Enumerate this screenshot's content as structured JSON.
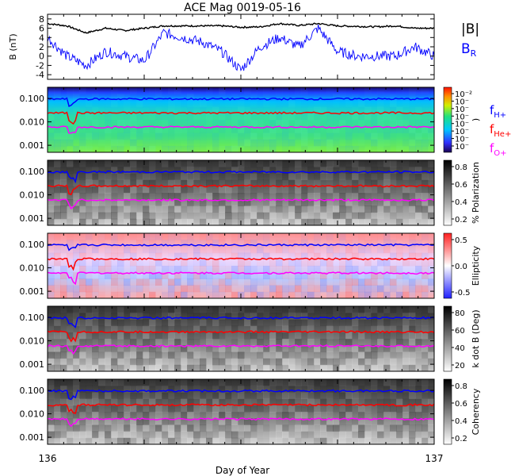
{
  "chart_data": {
    "type": "figure",
    "title": "ACE Mag 0019-05-16",
    "xlabel": "Day of Year",
    "x_ticks": [
      "136",
      "137"
    ],
    "xlim": [
      136,
      137
    ],
    "panels": [
      {
        "type": "line",
        "ylabel": "B (nT)",
        "yticks": [
          "8",
          "6",
          "4",
          "2",
          "0",
          "-2",
          "-4"
        ],
        "ylim": [
          -5,
          9
        ],
        "series": [
          {
            "name": "|B|",
            "color": "#000000",
            "x": [
              136.0,
              136.05,
              136.1,
              136.15,
              136.2,
              136.25,
              136.3,
              136.35,
              136.4,
              136.45,
              136.5,
              136.55,
              136.6,
              136.65,
              136.7,
              136.75,
              136.8,
              136.85,
              136.9,
              136.95,
              137.0
            ],
            "y": [
              7,
              6.5,
              5,
              6,
              5.5,
              6,
              6.5,
              6.5,
              6.5,
              6.5,
              6.2,
              6.3,
              7,
              6.6,
              7,
              6.5,
              6.4,
              6.3,
              6.5,
              6,
              6
            ]
          },
          {
            "name": "B_R",
            "color": "#0000ff",
            "x": [
              136.0,
              136.05,
              136.1,
              136.15,
              136.2,
              136.25,
              136.3,
              136.35,
              136.4,
              136.45,
              136.5,
              136.55,
              136.6,
              136.65,
              136.7,
              136.75,
              136.8,
              136.85,
              136.9,
              136.95,
              137.0
            ],
            "y": [
              4,
              0,
              -2,
              1,
              0,
              -1,
              5,
              4,
              3,
              1,
              -3,
              2,
              4,
              2,
              6,
              1,
              0,
              0,
              0,
              2,
              0
            ]
          }
        ]
      },
      {
        "type": "heatmap",
        "y_scale": "log",
        "yticks": [
          "0.100",
          "0.010",
          "0.001"
        ],
        "colorbar_label": ")",
        "colorbar_ticks": [
          "10⁻²",
          "10⁻",
          "10⁻",
          "10⁻",
          "10⁻",
          "10⁻",
          "10⁻",
          "10⁻"
        ],
        "series_labels": [
          "f_H+",
          "f_He+",
          "f_O+"
        ]
      },
      {
        "type": "heatmap",
        "y_scale": "log",
        "yticks": [
          "0.100",
          "0.010",
          "0.001"
        ],
        "colorbar_label": "% Polarization",
        "colorbar_ticks": [
          "0.8",
          "0.6",
          "0.4",
          "0.2"
        ]
      },
      {
        "type": "heatmap",
        "y_scale": "log",
        "yticks": [
          "0.100",
          "0.010",
          "0.001"
        ],
        "colorbar_label": "Ellipticity",
        "colorbar_ticks": [
          "0.5",
          "0.0",
          "-0.5"
        ]
      },
      {
        "type": "heatmap",
        "y_scale": "log",
        "yticks": [
          "0.100",
          "0.010",
          "0.001"
        ],
        "colorbar_label": "k dot B (Deg)",
        "colorbar_ticks": [
          "80",
          "60",
          "40",
          "20"
        ]
      },
      {
        "type": "heatmap",
        "y_scale": "log",
        "yticks": [
          "0.100",
          "0.010",
          "0.001"
        ],
        "colorbar_label": "Coherency",
        "colorbar_ticks": [
          "0.8",
          "0.6",
          "0.4",
          "0.2"
        ]
      }
    ],
    "frequency_lines": [
      {
        "name": "f_H+",
        "color": "#0000ff",
        "value": 0.095
      },
      {
        "name": "f_He+",
        "color": "#ff0000",
        "value": 0.024
      },
      {
        "name": "f_O+",
        "color": "#ff00ff",
        "value": 0.006
      }
    ]
  },
  "labels": {
    "legend_B": "|B|",
    "legend_BR_main": "B",
    "legend_BR_sub": "R",
    "fH_main": "f",
    "fH_sub": "H+",
    "fHe_main": "f",
    "fHe_sub": "He+",
    "fO_main": "f",
    "fO_sub": "O+"
  }
}
